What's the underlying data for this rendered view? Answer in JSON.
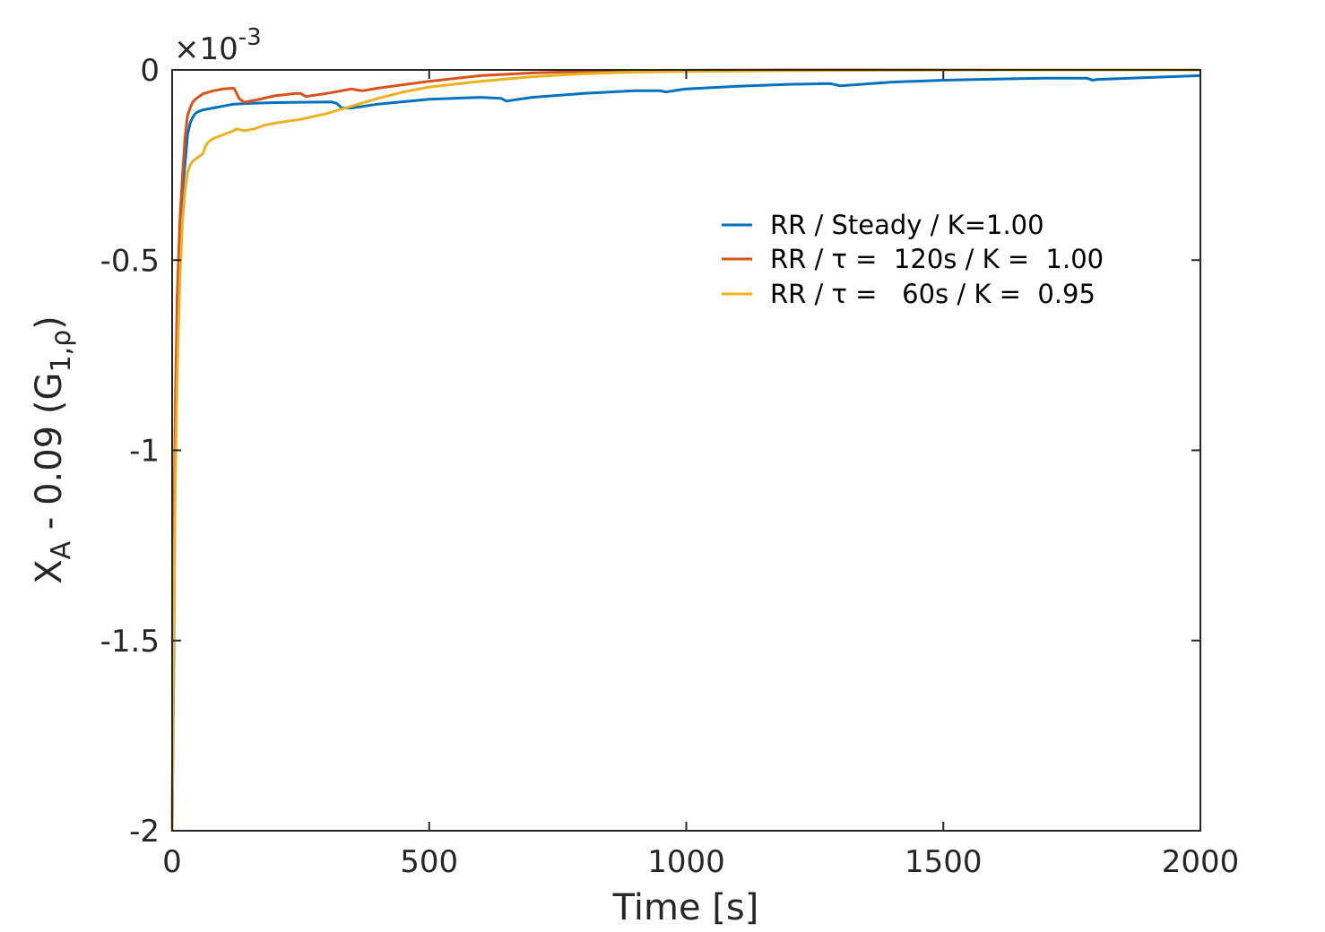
{
  "chart_data": {
    "type": "line",
    "title": "",
    "xlabel": "Time [s]",
    "ylabel_base": "X",
    "ylabel_sub": "A",
    "ylabel_mid": " - 0.09 (G",
    "ylabel_sub2": "1,ρ",
    "ylabel_end": ")",
    "exponent_prefix": "×10",
    "exponent_power": "-3",
    "xlim": [
      0,
      2000
    ],
    "ylim": [
      -2,
      0
    ],
    "xticks": [
      0,
      500,
      1000,
      1500,
      2000
    ],
    "xtick_labels": [
      "0",
      "500",
      "1000",
      "1500",
      "2000"
    ],
    "yticks": [
      -2,
      -1.5,
      -1,
      -0.5,
      0
    ],
    "ytick_labels": [
      "-2",
      "-1.5",
      "-1",
      "-0.5",
      "0"
    ],
    "grid": false,
    "legend_position": "upper-right (inside)",
    "reference_line": {
      "y": 0,
      "style": "dotted",
      "color": "#000000"
    },
    "series": [
      {
        "name": "RR / Steady / K=1.00",
        "color": "#0072BD",
        "x": [
          0,
          3,
          6,
          10,
          15,
          20,
          25,
          30,
          35,
          40,
          45,
          50,
          60,
          80,
          100,
          120,
          150,
          200,
          250,
          310,
          320,
          330,
          350,
          400,
          500,
          600,
          640,
          650,
          700,
          800,
          900,
          950,
          960,
          1000,
          1100,
          1200,
          1280,
          1300,
          1400,
          1500,
          1600,
          1700,
          1780,
          1790,
          1800,
          1900,
          2000
        ],
        "y": [
          -2.0,
          -1.6,
          -1.0,
          -0.6,
          -0.42,
          -0.32,
          -0.25,
          -0.17,
          -0.14,
          -0.125,
          -0.115,
          -0.11,
          -0.105,
          -0.1,
          -0.095,
          -0.09,
          -0.088,
          -0.086,
          -0.085,
          -0.084,
          -0.088,
          -0.1,
          -0.1,
          -0.09,
          -0.077,
          -0.072,
          -0.075,
          -0.082,
          -0.072,
          -0.062,
          -0.055,
          -0.055,
          -0.058,
          -0.05,
          -0.043,
          -0.038,
          -0.036,
          -0.042,
          -0.032,
          -0.027,
          -0.024,
          -0.022,
          -0.022,
          -0.027,
          -0.025,
          -0.02,
          -0.015
        ]
      },
      {
        "name": "RR / τ =  120s / K =  1.00",
        "color": "#D95319",
        "x": [
          0,
          3,
          6,
          10,
          15,
          20,
          25,
          30,
          35,
          40,
          45,
          50,
          60,
          80,
          100,
          120,
          125,
          130,
          140,
          160,
          200,
          240,
          250,
          260,
          300,
          350,
          360,
          370,
          400,
          500,
          600,
          700,
          800,
          900,
          1000,
          1200,
          1400,
          1600,
          1800,
          2000
        ],
        "y": [
          -2.0,
          -1.3,
          -0.9,
          -0.6,
          -0.4,
          -0.28,
          -0.18,
          -0.12,
          -0.1,
          -0.085,
          -0.078,
          -0.072,
          -0.063,
          -0.055,
          -0.05,
          -0.048,
          -0.06,
          -0.075,
          -0.085,
          -0.08,
          -0.068,
          -0.062,
          -0.062,
          -0.07,
          -0.062,
          -0.05,
          -0.053,
          -0.055,
          -0.048,
          -0.03,
          -0.015,
          -0.008,
          -0.004,
          -0.002,
          -0.001,
          0.0,
          0.0,
          0.0,
          0.0,
          0.0
        ]
      },
      {
        "name": "RR / τ =   60s / K =  0.95",
        "color": "#EDB120",
        "x": [
          0,
          3,
          6,
          10,
          15,
          20,
          25,
          30,
          35,
          40,
          45,
          50,
          55,
          60,
          65,
          70,
          80,
          100,
          120,
          125,
          140,
          160,
          180,
          200,
          250,
          300,
          350,
          400,
          450,
          500,
          600,
          700,
          800,
          900,
          1000,
          1200,
          1400,
          1600,
          1800,
          2000
        ],
        "y": [
          -2.0,
          -1.5,
          -1.1,
          -0.8,
          -0.55,
          -0.4,
          -0.32,
          -0.27,
          -0.25,
          -0.24,
          -0.235,
          -0.23,
          -0.225,
          -0.22,
          -0.2,
          -0.19,
          -0.18,
          -0.17,
          -0.16,
          -0.155,
          -0.16,
          -0.155,
          -0.145,
          -0.14,
          -0.13,
          -0.115,
          -0.095,
          -0.075,
          -0.058,
          -0.045,
          -0.03,
          -0.018,
          -0.01,
          -0.006,
          -0.004,
          -0.002,
          -0.001,
          0.0,
          0.0,
          0.0
        ]
      }
    ]
  }
}
